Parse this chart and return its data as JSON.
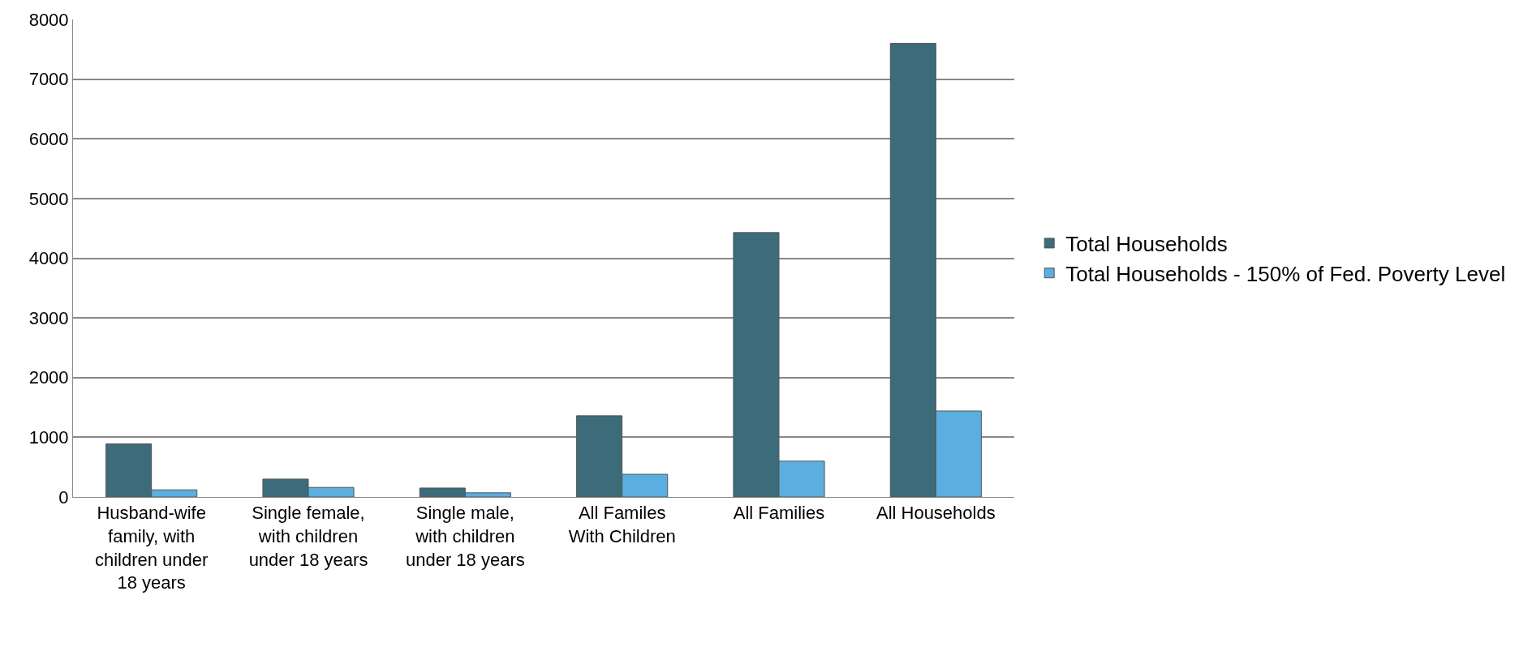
{
  "chart_data": {
    "type": "bar",
    "categories": [
      "Husband-wife family, with children under 18 years",
      "Single female, with children under 18 years",
      "Single male, with children under 18 years",
      "All Familes With Children",
      "All Families",
      "All Households"
    ],
    "series": [
      {
        "name": "Total Households",
        "color": "#3c6c7a",
        "values": [
          890,
          300,
          150,
          1360,
          4430,
          7600
        ]
      },
      {
        "name": "Total Households - 150% of Fed. Poverty Level",
        "color": "#5aaee0",
        "values": [
          120,
          160,
          70,
          380,
          600,
          1440
        ]
      }
    ],
    "ylim": [
      0,
      8000
    ],
    "yticks": [
      0,
      1000,
      2000,
      3000,
      4000,
      5000,
      6000,
      7000,
      8000
    ],
    "grid": "y",
    "legend": "right"
  }
}
